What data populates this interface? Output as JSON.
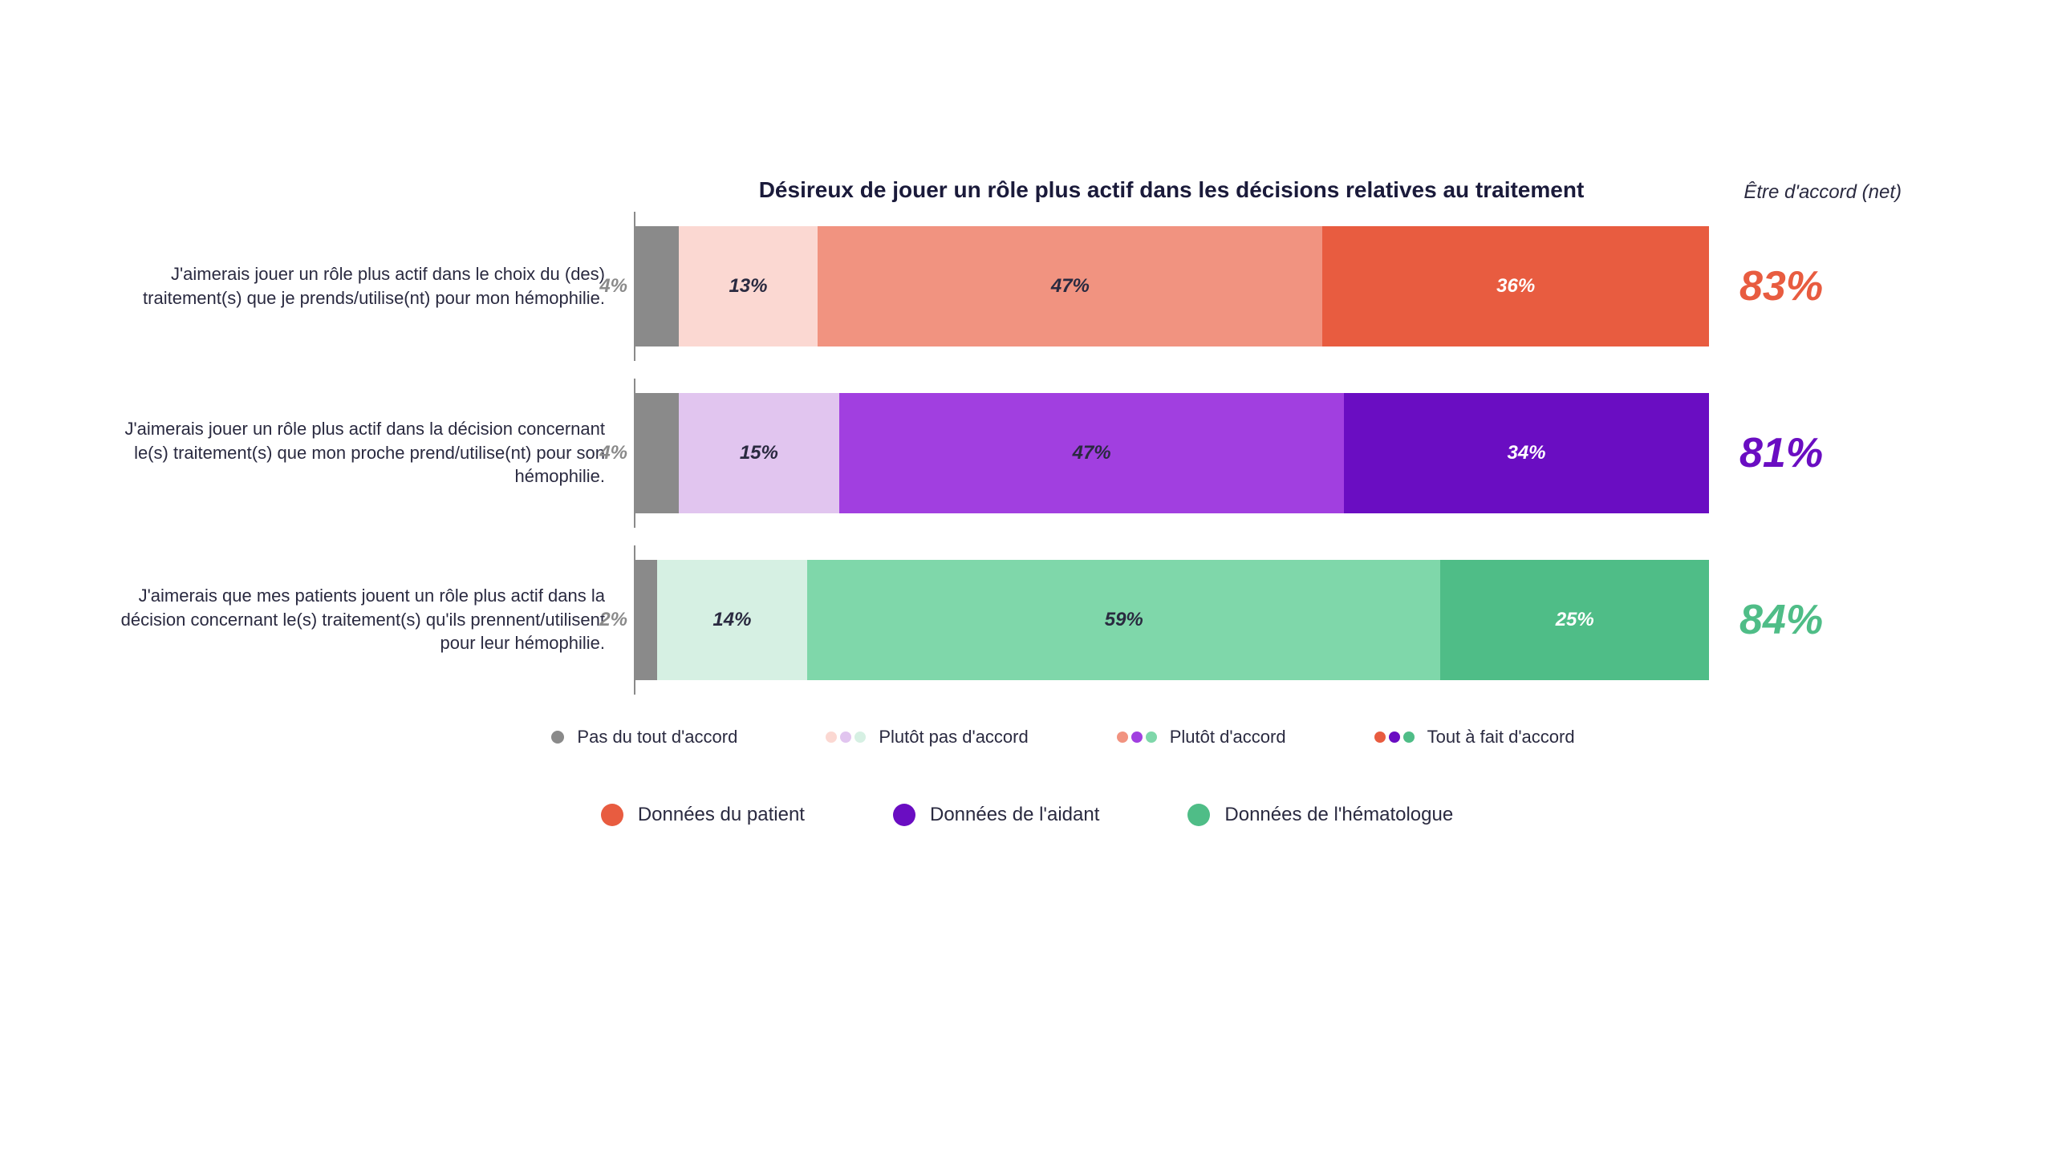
{
  "chart": {
    "type": "stacked-bar-horizontal",
    "title": "Désireux de jouer un rôle plus actif dans les décisions relatives au traitement",
    "net_header": "Être d'accord (net)",
    "background_color": "#ffffff",
    "axis_color": "#8a8a8a",
    "label_color": "#2a2a40",
    "title_color": "#1a1a3a",
    "title_fontsize": 28,
    "label_fontsize": 22,
    "net_fontsize": 52,
    "seg_label_fontsize": 24,
    "palettes": {
      "patient": {
        "disagree_strong": "#8a8a8a",
        "disagree": "#fbd8d2",
        "agree": "#f19380",
        "agree_strong": "#e85c40",
        "dark_text": "#2a2a40",
        "light_text": "#ffffff"
      },
      "caregiver": {
        "disagree_strong": "#8a8a8a",
        "disagree": "#e1c5ef",
        "agree": "#a13fe0",
        "agree_strong": "#6a0dc2",
        "dark_text": "#2a2a40",
        "light_text": "#ffffff"
      },
      "hematologist": {
        "disagree_strong": "#8a8a8a",
        "disagree": "#d6f0e3",
        "agree": "#7fd7aa",
        "agree_strong": "#4fbd87",
        "dark_text": "#2a2a40",
        "light_text": "#ffffff"
      }
    },
    "rows": [
      {
        "group": "patient",
        "label": "J'aimerais jouer un rôle plus actif dans le choix du (des) traitement(s) que je prends/utilise(nt) pour mon hémophilie.",
        "values": {
          "disagree_strong": 4,
          "disagree": 13,
          "agree": 47,
          "agree_strong": 36
        },
        "net": "83%",
        "net_color": "#e85c40",
        "seg_labels": {
          "disagree_strong": "4%",
          "disagree": "13%",
          "agree": "47%",
          "agree_strong": "36%"
        }
      },
      {
        "group": "caregiver",
        "label": "J'aimerais jouer un rôle plus actif dans la décision concernant le(s) traitement(s) que mon proche prend/utilise(nt) pour son hémophilie.",
        "values": {
          "disagree_strong": 4,
          "disagree": 15,
          "agree": 47,
          "agree_strong": 34
        },
        "net": "81%",
        "net_color": "#6a0dc2",
        "seg_labels": {
          "disagree_strong": "4%",
          "disagree": "15%",
          "agree": "47%",
          "agree_strong": "34%"
        }
      },
      {
        "group": "hematologist",
        "label": "J'aimerais que mes patients jouent un rôle plus actif dans la décision concernant le(s) traitement(s) qu'ils prennent/utilisent pour leur hémophilie.",
        "values": {
          "disagree_strong": 2,
          "disagree": 14,
          "agree": 59,
          "agree_strong": 25
        },
        "net": "84%",
        "net_color": "#4fbd87",
        "seg_labels": {
          "disagree_strong": "2%",
          "disagree": "14%",
          "agree": "59%",
          "agree_strong": "25%"
        }
      }
    ],
    "legend_agreement": {
      "items": [
        {
          "key": "disagree_strong",
          "label": "Pas du tout d'accord"
        },
        {
          "key": "disagree",
          "label": "Plutôt pas d'accord"
        },
        {
          "key": "agree",
          "label": "Plutôt d'accord"
        },
        {
          "key": "agree_strong",
          "label": "Tout à fait d'accord"
        }
      ],
      "single_dot_color": "#8a8a8a"
    },
    "legend_groups": {
      "items": [
        {
          "group": "patient",
          "label": "Données du patient",
          "color": "#e85c40"
        },
        {
          "group": "caregiver",
          "label": "Données de l'aidant",
          "color": "#6a0dc2"
        },
        {
          "group": "hematologist",
          "label": "Données de l'hématologue",
          "color": "#4fbd87"
        }
      ]
    }
  }
}
